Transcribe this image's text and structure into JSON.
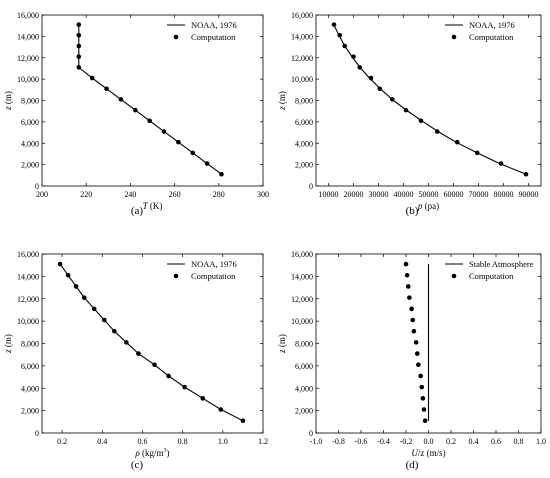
{
  "charts": [
    {
      "caption": "(a)",
      "chart_data": {
        "type": "line",
        "xlabel_main": "T",
        "xlabel_unit": " (K)",
        "ylabel_main": "z",
        "ylabel_unit": " (m)",
        "xlim": [
          200,
          300
        ],
        "ylim": [
          0,
          16000
        ],
        "xticks": [
          "200",
          "220",
          "240",
          "260",
          "280",
          "300"
        ],
        "yticks": [
          "0",
          "2,000",
          "4,000",
          "6,000",
          "8,000",
          "10,000",
          "12,000",
          "14,000",
          "16,000"
        ],
        "legend": "top-right",
        "series": [
          {
            "name": "NOAA, 1976",
            "style": "line",
            "points": [
              [
                281.2,
                1100
              ],
              [
                274.7,
                2100
              ],
              [
                268.2,
                3100
              ],
              [
                261.7,
                4100
              ],
              [
                255.2,
                5100
              ],
              [
                248.7,
                6100
              ],
              [
                242.2,
                7100
              ],
              [
                235.7,
                8100
              ],
              [
                229.2,
                9100
              ],
              [
                222.7,
                10100
              ],
              [
                216.65,
                11100
              ],
              [
                216.65,
                12100
              ],
              [
                216.65,
                13100
              ],
              [
                216.65,
                14100
              ],
              [
                216.65,
                15100
              ]
            ]
          },
          {
            "name": "Computation",
            "style": "markers",
            "points": [
              [
                281.2,
                1100
              ],
              [
                274.7,
                2100
              ],
              [
                268.2,
                3100
              ],
              [
                261.7,
                4100
              ],
              [
                255.2,
                5100
              ],
              [
                248.7,
                6100
              ],
              [
                242.2,
                7100
              ],
              [
                235.7,
                8100
              ],
              [
                229.2,
                9100
              ],
              [
                222.7,
                10100
              ],
              [
                216.65,
                11100
              ],
              [
                216.65,
                12100
              ],
              [
                216.65,
                13100
              ],
              [
                216.65,
                14100
              ],
              [
                216.65,
                15100
              ]
            ]
          }
        ]
      }
    },
    {
      "caption": "(b)",
      "chart_data": {
        "type": "line",
        "xlabel_main": "p",
        "xlabel_unit": " (pa)",
        "ylabel_main": "z",
        "ylabel_unit": " (m)",
        "xlim": [
          5000,
          95000
        ],
        "ylim": [
          0,
          16000
        ],
        "xticks": [
          "10000",
          "20000",
          "30000",
          "40000",
          "50000",
          "60000",
          "70000",
          "80000",
          "90000"
        ],
        "yticks": [
          "0",
          "2,000",
          "4,000",
          "6,000",
          "8,000",
          "10,000",
          "12,000",
          "14,000",
          "16,000"
        ],
        "legend": "top-right",
        "series": [
          {
            "name": "NOAA, 1976",
            "style": "line",
            "points": [
              [
                89000,
                1100
              ],
              [
                78500,
                2100
              ],
              [
                69500,
                3100
              ],
              [
                61000,
                4100
              ],
              [
                53800,
                5100
              ],
              [
                47300,
                6100
              ],
              [
                41100,
                7100
              ],
              [
                35500,
                8100
              ],
              [
                30700,
                9100
              ],
              [
                26400,
                10100
              ],
              [
                22600,
                11100
              ],
              [
                19400,
                12100
              ],
              [
                16500,
                13100
              ],
              [
                14200,
                14100
              ],
              [
                12100,
                15100
              ]
            ]
          },
          {
            "name": "Computation",
            "style": "markers",
            "points": [
              [
                89000,
                1100
              ],
              [
                79000,
                2100
              ],
              [
                69500,
                3100
              ],
              [
                61500,
                4100
              ],
              [
                53500,
                5100
              ],
              [
                47000,
                6100
              ],
              [
                41000,
                7100
              ],
              [
                35500,
                8100
              ],
              [
                30500,
                9100
              ],
              [
                27000,
                10100
              ],
              [
                22500,
                11100
              ],
              [
                20000,
                12100
              ],
              [
                16500,
                13100
              ],
              [
                14500,
                14100
              ],
              [
                12200,
                15100
              ]
            ]
          }
        ]
      }
    },
    {
      "caption": "(c)",
      "chart_data": {
        "type": "line",
        "xlabel_main": "ρ",
        "xlabel_unit": " (kg/m",
        "xlabel_sup": "3",
        "xlabel_close": ")",
        "ylabel_main": "z",
        "ylabel_unit": " (m)",
        "xlim": [
          0.1,
          1.2
        ],
        "ylim": [
          0,
          16000
        ],
        "xticks": [
          "0.2",
          "0.4",
          "0.6",
          "0.8",
          "1.0",
          "1.2"
        ],
        "yticks": [
          "0",
          "2,000",
          "4,000",
          "6,000",
          "8,000",
          "10,000",
          "12,000",
          "14,000",
          "16,000"
        ],
        "legend": "top-right",
        "series": [
          {
            "name": "NOAA, 1976",
            "style": "line",
            "points": [
              [
                1.1,
                1100
              ],
              [
                0.99,
                2100
              ],
              [
                0.9,
                3100
              ],
              [
                0.81,
                4100
              ],
              [
                0.73,
                5100
              ],
              [
                0.66,
                6100
              ],
              [
                0.58,
                7100
              ],
              [
                0.52,
                8100
              ],
              [
                0.46,
                9100
              ],
              [
                0.41,
                10100
              ],
              [
                0.36,
                11100
              ],
              [
                0.31,
                12100
              ],
              [
                0.27,
                13100
              ],
              [
                0.23,
                14100
              ],
              [
                0.19,
                15100
              ]
            ]
          },
          {
            "name": "Computation",
            "style": "markers",
            "points": [
              [
                1.1,
                1100
              ],
              [
                0.99,
                2100
              ],
              [
                0.9,
                3100
              ],
              [
                0.81,
                4100
              ],
              [
                0.73,
                5100
              ],
              [
                0.66,
                6100
              ],
              [
                0.58,
                7100
              ],
              [
                0.52,
                8100
              ],
              [
                0.46,
                9100
              ],
              [
                0.41,
                10100
              ],
              [
                0.36,
                11100
              ],
              [
                0.31,
                12100
              ],
              [
                0.27,
                13100
              ],
              [
                0.23,
                14100
              ],
              [
                0.19,
                15100
              ]
            ]
          }
        ]
      }
    },
    {
      "caption": "(d)",
      "chart_data": {
        "type": "line",
        "xlabel_main": "U",
        "xlabel_unit": "/z (m/s)",
        "ylabel_main": "z",
        "ylabel_unit": " (m)",
        "xlim": [
          -1.0,
          1.0
        ],
        "ylim": [
          0,
          16000
        ],
        "xticks": [
          "-1.0",
          "-0.8",
          "-0.6",
          "-0.4",
          "-0.2",
          "0.0",
          "0.2",
          "0.4",
          "0.6",
          "0.8",
          "1.0"
        ],
        "yticks": [
          "0",
          "2,000",
          "4,000",
          "6,000",
          "8,000",
          "10,000",
          "12,000",
          "14,000",
          "16,000"
        ],
        "legend": "top-right",
        "series": [
          {
            "name": "Stable Atmosphere",
            "style": "line",
            "points": [
              [
                0.0,
                1100
              ],
              [
                0.0,
                15100
              ]
            ]
          },
          {
            "name": "Computation",
            "style": "markers",
            "points": [
              [
                -0.03,
                1100
              ],
              [
                -0.04,
                2100
              ],
              [
                -0.05,
                3100
              ],
              [
                -0.06,
                4100
              ],
              [
                -0.07,
                5100
              ],
              [
                -0.09,
                6100
              ],
              [
                -0.1,
                7100
              ],
              [
                -0.11,
                8100
              ],
              [
                -0.13,
                9100
              ],
              [
                -0.14,
                10100
              ],
              [
                -0.15,
                11100
              ],
              [
                -0.17,
                12100
              ],
              [
                -0.18,
                13100
              ],
              [
                -0.19,
                14100
              ],
              [
                -0.2,
                15100
              ]
            ]
          }
        ]
      }
    }
  ]
}
